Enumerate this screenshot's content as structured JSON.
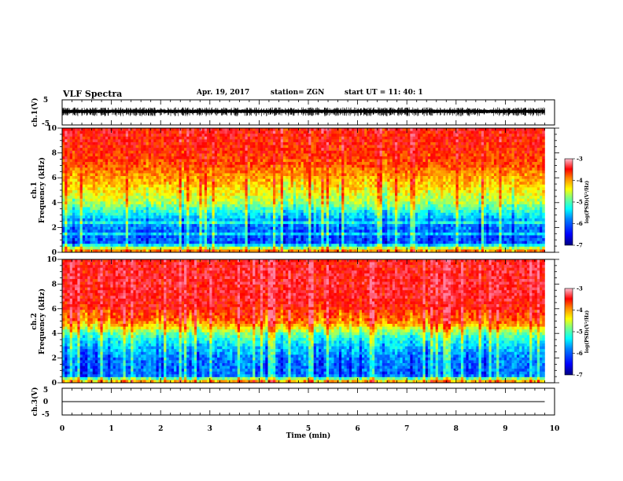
{
  "header": {
    "title": "VLF Spectra",
    "date": "Apr. 19, 2017",
    "station": "station= ZGN",
    "start": "start  UT  =    11: 40: 1"
  },
  "chart_data": [
    {
      "type": "line",
      "name": "ch1-waveform",
      "ylabel": "ch.1(V)",
      "ylim": [
        -5,
        5
      ],
      "yticks": [
        "5",
        "-5"
      ],
      "xlim": [
        0,
        10
      ],
      "data_extent_x": [
        0,
        9.8
      ],
      "signal": {
        "min": -1.5,
        "max": 2.0,
        "baseline": 0.5
      },
      "color": "#000000"
    },
    {
      "type": "heatmap",
      "name": "ch1-spectrogram",
      "ylabel": "ch.1\nFrequency (kHz)",
      "ylim": [
        0,
        10
      ],
      "yticks": [
        "0",
        "2",
        "4",
        "6",
        "8",
        "10"
      ],
      "xlim": [
        0,
        10
      ],
      "data_extent_x": [
        0,
        9.8
      ],
      "profile_freq_khz": [
        0,
        0.3,
        0.6,
        1.0,
        1.5,
        2.0,
        2.5,
        3.0,
        3.5,
        4.0,
        5.0,
        6.0,
        7.0,
        8.0,
        9.0,
        10.0
      ],
      "profile_level": [
        0.82,
        0.62,
        0.2,
        0.22,
        0.22,
        0.25,
        0.28,
        0.36,
        0.45,
        0.55,
        0.64,
        0.72,
        0.8,
        0.84,
        0.86,
        0.88
      ],
      "line_freqs_khz": [
        0.5,
        1.5,
        2.4
      ],
      "colorbar": {
        "label": "log(PSD)(V²/Hz)",
        "ticks": [
          "-3",
          "-4",
          "-5",
          "-6",
          "-7"
        ],
        "range": [
          -7,
          -3
        ]
      }
    },
    {
      "type": "heatmap",
      "name": "ch2-spectrogram",
      "ylabel": "ch.2\nFrequency (kHz)",
      "ylim": [
        0,
        10
      ],
      "yticks": [
        "0",
        "2",
        "4",
        "6",
        "8",
        "10"
      ],
      "xlim": [
        0,
        10
      ],
      "data_extent_x": [
        0,
        9.8
      ],
      "profile_freq_khz": [
        0,
        0.3,
        0.6,
        1.0,
        1.5,
        2.0,
        2.5,
        3.0,
        3.5,
        4.0,
        4.5,
        5.0,
        6.0,
        7.0,
        8.0,
        9.0,
        10.0
      ],
      "profile_level": [
        0.8,
        0.55,
        0.22,
        0.24,
        0.24,
        0.26,
        0.3,
        0.34,
        0.4,
        0.5,
        0.66,
        0.78,
        0.86,
        0.9,
        0.9,
        0.9,
        0.88
      ],
      "colorbar": {
        "label": "log(PSD)(V²/Hz)",
        "ticks": [
          "-3",
          "-4",
          "-5",
          "-6",
          "-7"
        ],
        "range": [
          -7,
          -3
        ]
      }
    },
    {
      "type": "line",
      "name": "ch3-waveform",
      "ylabel": "ch.3(V)",
      "ylim": [
        -5,
        5
      ],
      "yticks": [
        "5",
        "0",
        "-5"
      ],
      "xlim": [
        0,
        10
      ],
      "data_extent_x": [
        0,
        9.8
      ],
      "constant_value": 0,
      "xlabel": "Time (min)",
      "xticks": [
        "0",
        "1",
        "2",
        "3",
        "4",
        "5",
        "6",
        "7",
        "8",
        "9",
        "10"
      ],
      "color": "#000000"
    }
  ],
  "colors": {
    "jet": [
      "#000080",
      "#0000ff",
      "#0080ff",
      "#00ffff",
      "#80ff80",
      "#ffff00",
      "#ff8000",
      "#ff0000",
      "#ff80a0"
    ]
  }
}
